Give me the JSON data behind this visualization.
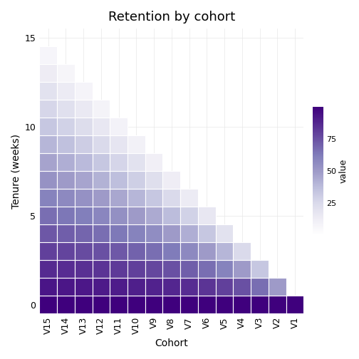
{
  "cohorts": [
    "V15",
    "V14",
    "V13",
    "V12",
    "V11",
    "V10",
    "V9",
    "V8",
    "V7",
    "V6",
    "V5",
    "V4",
    "V3",
    "V2",
    "V1"
  ],
  "n_cohorts": 15,
  "max_tenure": 15,
  "title": "Retention by cohort",
  "xlabel": "Cohort",
  "ylabel": "Tenure (weeks)",
  "colorbar_label": "value",
  "colorbar_ticks": [
    25,
    50,
    75
  ],
  "vmin": 0,
  "vmax": 100,
  "background_color": "#ffffff",
  "cmap": "Purples",
  "cell_edgecolor": "#ffffff",
  "cell_linewidth": 0.8,
  "title_fontsize": 13,
  "axis_fontsize": 10,
  "tick_fontsize": 9
}
